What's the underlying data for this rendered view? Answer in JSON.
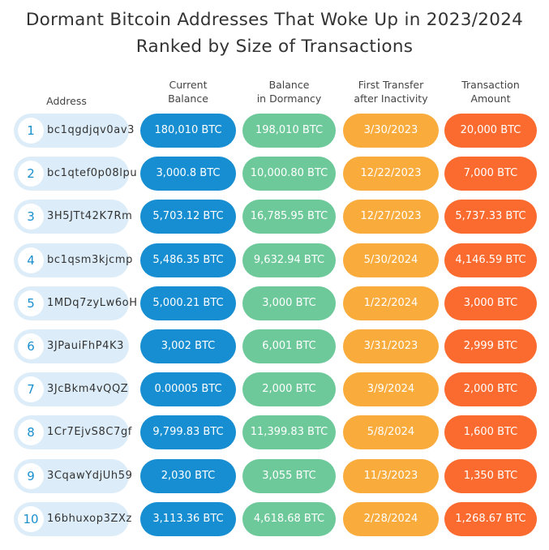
{
  "title_line1": "Dormant Bitcoin Addresses That Woke Up in 2023/2024",
  "title_line2": "Ranked by Size of Transactions",
  "headers": {
    "address": "Address",
    "current_1": "Current",
    "current_2": "Balance",
    "dormancy_1": "Balance",
    "dormancy_2": "in Dormancy",
    "first_1": "First Transfer",
    "first_2": "after Inactivity",
    "amount_1": "Transaction",
    "amount_2": "Amount"
  },
  "colors": {
    "address_pill": "#dcedf9",
    "current_balance": "#178ed1",
    "balance_in_dormancy": "#6dc99a",
    "first_transfer": "#f9ab3c",
    "transaction_amount": "#fb6b2f"
  },
  "chart_data": {
    "type": "table",
    "columns": [
      "Address",
      "Current Balance",
      "Balance in Dormancy",
      "First Transfer after Inactivity",
      "Transaction Amount"
    ],
    "rows": [
      {
        "rank": "1",
        "address": "bc1qgdjqv0av3",
        "current": "180,010 BTC",
        "dormancy": "198,010 BTC",
        "first": "3/30/2023",
        "amount": "20,000 BTC"
      },
      {
        "rank": "2",
        "address": "bc1qtef0p08lpu",
        "current": "3,000.8 BTC",
        "dormancy": "10,000.80 BTC",
        "first": "12/22/2023",
        "amount": "7,000 BTC"
      },
      {
        "rank": "3",
        "address": "3H5JTt42K7Rm",
        "current": "5,703.12 BTC",
        "dormancy": "16,785.95 BTC",
        "first": "12/27/2023",
        "amount": "5,737.33 BTC"
      },
      {
        "rank": "4",
        "address": "bc1qsm3kjcmp",
        "current": "5,486.35 BTC",
        "dormancy": "9,632.94 BTC",
        "first": "5/30/2024",
        "amount": "4,146.59 BTC"
      },
      {
        "rank": "5",
        "address": "1MDq7zyLw6oH",
        "current": "5,000.21 BTC",
        "dormancy": "3,000 BTC",
        "first": "1/22/2024",
        "amount": "3,000 BTC"
      },
      {
        "rank": "6",
        "address": "3JPauiFhP4K3",
        "current": "3,002 BTC",
        "dormancy": "6,001 BTC",
        "first": "3/31/2023",
        "amount": "2,999 BTC"
      },
      {
        "rank": "7",
        "address": "3JcBkm4vQQZ",
        "current": "0.00005 BTC",
        "dormancy": "2,000 BTC",
        "first": "3/9/2024",
        "amount": "2,000 BTC"
      },
      {
        "rank": "8",
        "address": "1Cr7EjvS8C7gf",
        "current": "9,799.83 BTC",
        "dormancy": "11,399.83 BTC",
        "first": "5/8/2024",
        "amount": "1,600 BTC"
      },
      {
        "rank": "9",
        "address": "3CqawYdjUh59",
        "current": "2,030 BTC",
        "dormancy": "3,055 BTC",
        "first": "11/3/2023",
        "amount": "1,350 BTC"
      },
      {
        "rank": "10",
        "address": "16bhuxop3ZXz",
        "current": "3,113.36 BTC",
        "dormancy": "4,618.68 BTC",
        "first": "2/28/2024",
        "amount": "1,268.67 BTC"
      }
    ]
  }
}
